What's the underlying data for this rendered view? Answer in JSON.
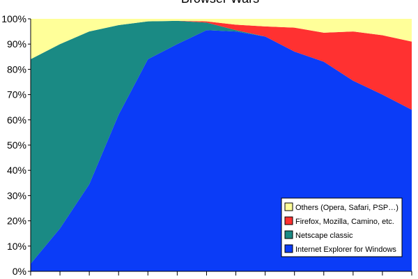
{
  "chart_data": {
    "type": "area",
    "title": "Browser Wars",
    "xlabel": "",
    "ylabel": "",
    "stacked": true,
    "ylim": [
      0,
      100
    ],
    "y_ticks": [
      "0%",
      "10%",
      "20%",
      "30%",
      "40%",
      "50%",
      "60%",
      "70%",
      "80%",
      "90%",
      "100%"
    ],
    "x": [
      0,
      1,
      2,
      3,
      4,
      5,
      6,
      7,
      8,
      9,
      10,
      11,
      12,
      13
    ],
    "series": [
      {
        "name": "Internet Explorer for Windows",
        "color": "#0b3cf7",
        "values": [
          3,
          17,
          34.5,
          62,
          84,
          90,
          95.5,
          95,
          93,
          87,
          83,
          75.5,
          70,
          64
        ]
      },
      {
        "name": "Netscape classic",
        "color": "#1a8a84",
        "values": [
          81,
          73,
          60.5,
          35.5,
          15,
          9.2,
          3,
          0.5,
          0,
          0,
          0,
          0,
          0,
          0
        ]
      },
      {
        "name": "Firefox, Mozilla, Camino, etc.",
        "color": "#ff3131",
        "values": [
          0,
          0,
          0,
          0,
          0,
          0,
          0.5,
          2.2,
          4,
          9.5,
          11.5,
          19.5,
          23.5,
          27
        ]
      },
      {
        "name": "Others (Opera, Safari, PSP…)",
        "color": "#ffff99",
        "values": [
          16,
          10,
          5,
          2.5,
          1,
          0.8,
          1,
          2.3,
          3,
          3.5,
          5.5,
          5,
          6.5,
          9
        ]
      }
    ],
    "legend_position": "bottom-right",
    "legend_order": [
      "Others (Opera, Safari, PSP…)",
      "Firefox, Mozilla, Camino, etc.",
      "Netscape classic",
      "Internet Explorer for Windows"
    ],
    "grid": false
  }
}
